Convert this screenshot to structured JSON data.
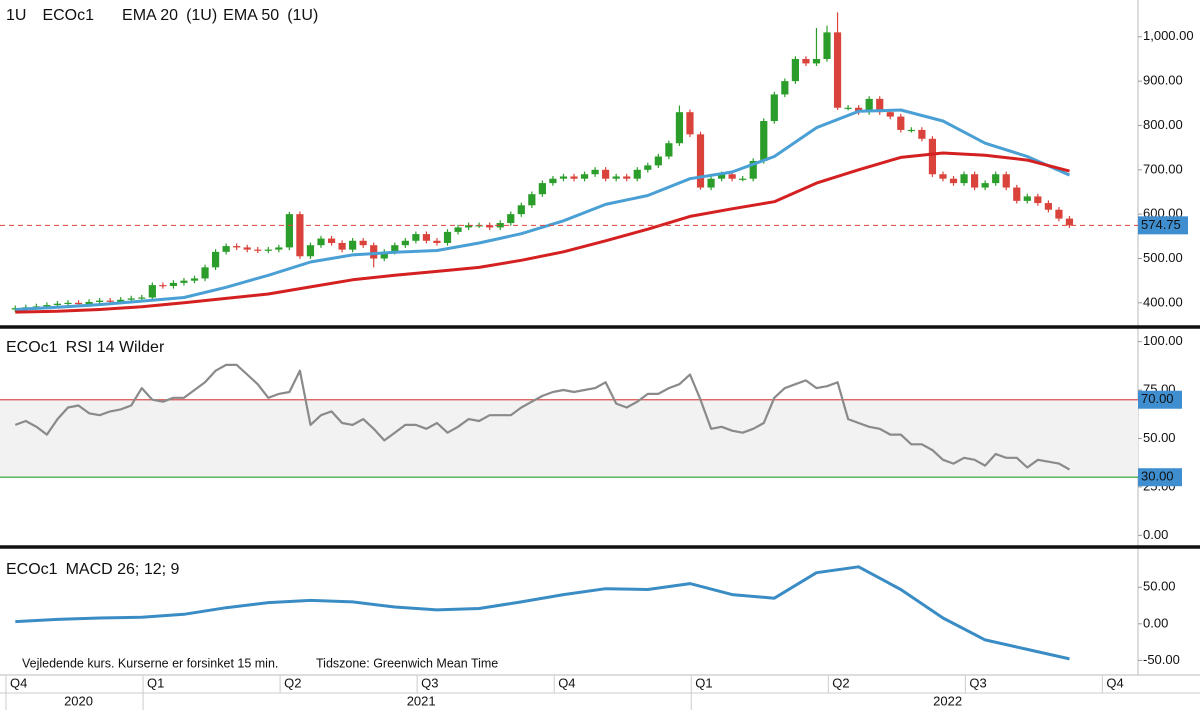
{
  "chart_data": [
    {
      "type": "candlestick",
      "timeframe": "1U",
      "symbol": "ECOc1",
      "up_color": "#2a9d2a",
      "down_color": "#d9433b",
      "open": [
        385,
        388,
        390,
        392,
        395,
        398,
        400,
        397,
        402,
        405,
        403,
        407,
        410,
        412,
        440,
        438,
        445,
        450,
        455,
        480,
        515,
        528,
        525,
        520,
        518,
        520,
        525,
        600,
        505,
        530,
        545,
        535,
        520,
        540,
        530,
        500,
        515,
        530,
        540,
        555,
        540,
        535,
        560,
        570,
        575,
        575,
        570,
        580,
        600,
        620,
        645,
        670,
        680,
        685,
        680,
        690,
        700,
        680,
        685,
        680,
        700,
        710,
        730,
        760,
        830,
        780,
        660,
        680,
        690,
        680,
        680,
        720,
        810,
        870,
        900,
        950,
        940,
        950,
        1010,
        840,
        840,
        830,
        860,
        830,
        820,
        790,
        790,
        770,
        690,
        680,
        670,
        690,
        660,
        670,
        690,
        660,
        630,
        640,
        625,
        610,
        590
      ],
      "high": [
        394,
        396,
        398,
        401,
        404,
        406,
        406,
        408,
        411,
        411,
        413,
        416,
        418,
        446,
        446,
        451,
        456,
        461,
        486,
        521,
        534,
        534,
        531,
        526,
        526,
        531,
        605,
        606,
        536,
        551,
        551,
        541,
        546,
        546,
        536,
        521,
        536,
        546,
        561,
        561,
        546,
        566,
        576,
        581,
        581,
        581,
        586,
        606,
        626,
        651,
        676,
        686,
        691,
        691,
        696,
        706,
        706,
        691,
        691,
        706,
        716,
        736,
        766,
        845,
        836,
        786,
        686,
        696,
        696,
        686,
        726,
        816,
        876,
        906,
        956,
        956,
        1020,
        1025,
        1055,
        846,
        846,
        866,
        866,
        836,
        826,
        796,
        796,
        776,
        696,
        686,
        696,
        696,
        676,
        696,
        696,
        666,
        646,
        646,
        631,
        616,
        596
      ],
      "low": [
        379,
        382,
        384,
        386,
        389,
        392,
        391,
        391,
        396,
        397,
        397,
        401,
        404,
        406,
        432,
        432,
        439,
        444,
        449,
        474,
        509,
        519,
        514,
        512,
        512,
        514,
        519,
        499,
        499,
        524,
        529,
        514,
        514,
        524,
        480,
        494,
        509,
        524,
        534,
        534,
        529,
        529,
        554,
        564,
        569,
        564,
        564,
        574,
        594,
        614,
        639,
        664,
        674,
        674,
        674,
        684,
        674,
        674,
        674,
        674,
        694,
        704,
        724,
        754,
        774,
        655,
        654,
        674,
        674,
        674,
        674,
        714,
        804,
        864,
        894,
        934,
        934,
        944,
        835,
        834,
        824,
        824,
        824,
        814,
        784,
        784,
        764,
        684,
        674,
        664,
        664,
        654,
        654,
        664,
        654,
        624,
        624,
        619,
        604,
        584,
        569
      ],
      "close": [
        388,
        390,
        392,
        395,
        398,
        400,
        397,
        402,
        405,
        403,
        407,
        410,
        412,
        440,
        438,
        445,
        450,
        455,
        480,
        515,
        528,
        525,
        520,
        518,
        520,
        525,
        600,
        505,
        530,
        545,
        535,
        520,
        540,
        530,
        500,
        515,
        530,
        540,
        555,
        540,
        535,
        560,
        570,
        575,
        575,
        570,
        580,
        600,
        620,
        645,
        670,
        680,
        685,
        680,
        690,
        700,
        680,
        685,
        680,
        700,
        710,
        730,
        760,
        830,
        780,
        660,
        680,
        690,
        680,
        680,
        720,
        810,
        870,
        900,
        950,
        940,
        950,
        1010,
        840,
        840,
        830,
        860,
        830,
        820,
        790,
        790,
        770,
        690,
        680,
        670,
        690,
        660,
        670,
        690,
        660,
        630,
        640,
        625,
        610,
        590,
        574.75
      ],
      "last_color": "#3f8fd0",
      "series": [
        {
          "name": "EMA 20",
          "suffix": "(1U)",
          "color": "#4a9fd4",
          "x": [
            0,
            4,
            8,
            12,
            16,
            20,
            24,
            28,
            32,
            36,
            40,
            44,
            48,
            52,
            56,
            60,
            64,
            68,
            72,
            76,
            80,
            84,
            88,
            92,
            96,
            100
          ],
          "values": [
            385,
            390,
            396,
            404,
            412,
            435,
            462,
            492,
            508,
            514,
            518,
            535,
            556,
            585,
            622,
            642,
            680,
            695,
            730,
            795,
            832,
            835,
            810,
            760,
            730,
            688
          ]
        },
        {
          "name": "EMA 50",
          "suffix": "(1U)",
          "color": "#d42020",
          "x": [
            0,
            4,
            8,
            12,
            16,
            20,
            24,
            28,
            32,
            36,
            40,
            44,
            48,
            52,
            56,
            60,
            64,
            68,
            72,
            76,
            80,
            84,
            88,
            92,
            96,
            100
          ],
          "values": [
            379,
            381,
            385,
            391,
            400,
            410,
            420,
            436,
            452,
            462,
            471,
            480,
            496,
            515,
            540,
            566,
            595,
            612,
            628,
            670,
            700,
            728,
            738,
            733,
            722,
            697
          ]
        }
      ],
      "ylim": [
        350,
        1083
      ],
      "yticks": [
        {
          "value": 400,
          "label": "400.00"
        },
        {
          "value": 500,
          "label": "500.00"
        },
        {
          "value": 600,
          "label": "600.00"
        },
        {
          "value": 700,
          "label": "700.00"
        },
        {
          "value": 800,
          "label": "800.00"
        },
        {
          "value": 900,
          "label": "900.00"
        },
        {
          "value": 1000,
          "label": "1,000.00"
        }
      ]
    },
    {
      "type": "line",
      "symbol": "ECOc1",
      "title": "RSI 14 Wilder",
      "color": "#8a8a8a",
      "values": [
        57,
        59,
        56,
        52,
        60,
        66,
        67,
        63,
        62,
        64,
        65,
        67,
        76,
        70,
        69,
        71,
        71,
        75,
        79,
        85,
        88,
        88,
        83,
        78,
        71,
        73,
        74,
        85,
        57,
        62,
        64,
        58,
        57,
        60,
        55,
        49,
        53,
        57,
        57,
        55,
        58,
        53,
        56,
        60,
        59,
        62,
        62,
        62,
        66,
        69,
        72,
        74,
        75,
        74,
        75,
        76,
        79,
        68,
        66,
        69,
        73,
        73,
        76,
        78,
        83,
        70,
        55,
        56,
        54,
        53,
        55,
        58,
        71,
        76,
        78,
        80,
        76,
        77,
        79,
        60,
        58,
        56,
        55,
        52,
        52,
        47,
        47,
        44,
        39,
        37,
        40,
        39,
        36,
        42,
        40,
        40,
        35,
        39,
        38,
        37,
        34
      ],
      "levels": [
        {
          "value": 70,
          "label": "70.00",
          "color": "#d9534f"
        },
        {
          "value": 30,
          "label": "30.00",
          "color": "#2a9d2a"
        }
      ],
      "band_color": "#f2f2f2",
      "level_label_color": "#3f8fd0",
      "ylim": [
        -5,
        106
      ],
      "yticks": [
        {
          "value": 0,
          "label": "0.00"
        },
        {
          "value": 25,
          "label": "25.00"
        },
        {
          "value": 50,
          "label": "50.00"
        },
        {
          "value": 75,
          "label": "75.00"
        },
        {
          "value": 100,
          "label": "100.00"
        }
      ]
    },
    {
      "type": "line",
      "symbol": "ECOc1",
      "title": "MACD 26; 12; 9",
      "color": "#3a8cc4",
      "x": [
        0,
        4,
        8,
        12,
        16,
        20,
        24,
        28,
        32,
        36,
        40,
        44,
        48,
        52,
        56,
        60,
        64,
        68,
        72,
        76,
        80,
        84,
        88,
        92,
        96,
        100
      ],
      "values": [
        3,
        6,
        8,
        9,
        13,
        22,
        29,
        32,
        30,
        23,
        19,
        21,
        30,
        40,
        48,
        47,
        55,
        40,
        35,
        70,
        78,
        47,
        8,
        -22,
        -35,
        -48
      ],
      "notes": [
        "Vejledende kurs. Kurserne er forsinket 15 min.",
        "Tidszone: Greenwich Mean Time"
      ],
      "ylim": [
        -70,
        101
      ],
      "yticks": [
        {
          "value": -50,
          "label": "-50.00"
        },
        {
          "value": 0,
          "label": "0.00"
        },
        {
          "value": 50,
          "label": "50.00"
        }
      ]
    }
  ],
  "xaxis": {
    "xlim": [
      -1.45,
      106.5
    ],
    "ticks": [
      {
        "value": -0.5,
        "label": "Q4"
      },
      {
        "value": 12.5,
        "label": "Q1"
      },
      {
        "value": 25.5,
        "label": "Q2"
      },
      {
        "value": 38.5,
        "label": "Q3"
      },
      {
        "value": 51.5,
        "label": "Q4"
      },
      {
        "value": 64.5,
        "label": "Q1"
      },
      {
        "value": 77.5,
        "label": "Q2"
      },
      {
        "value": 90.5,
        "label": "Q3"
      },
      {
        "value": 103.5,
        "label": "Q4"
      }
    ],
    "years": [
      {
        "start": -0.5,
        "label": "2020"
      },
      {
        "start": 12.5,
        "label": "2021"
      },
      {
        "start": 64.5,
        "label": "2022"
      }
    ]
  }
}
